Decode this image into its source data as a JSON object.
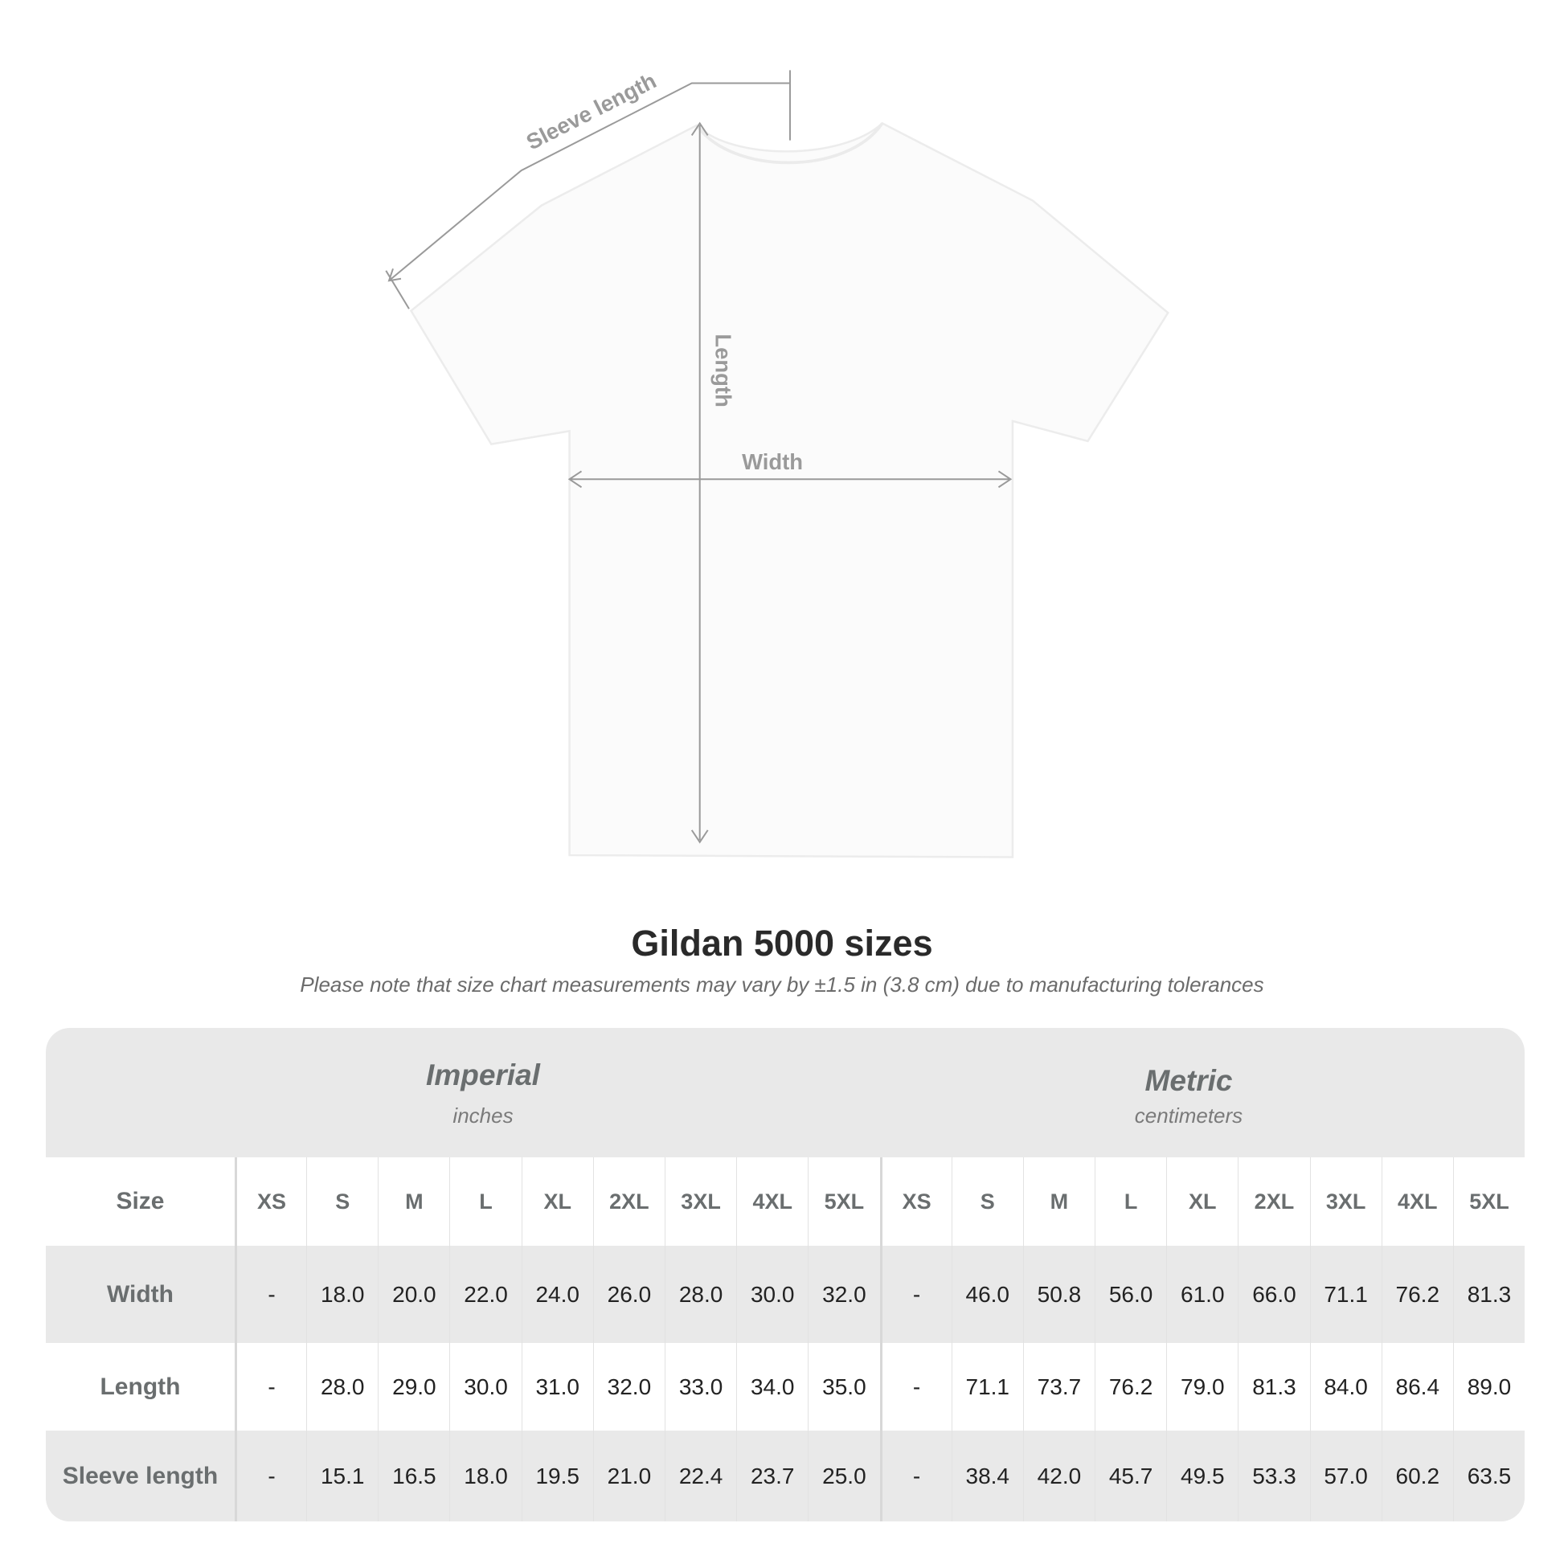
{
  "diagram": {
    "labels": {
      "sleeve": "Sleeve length",
      "length": "Length",
      "width": "Width"
    }
  },
  "title": "Gildan 5000 sizes",
  "note": "Please note that size chart measurements may vary by ±1.5 in (3.8 cm) due to manufacturing tolerances",
  "table": {
    "imperial": {
      "name": "Imperial",
      "unit": "inches"
    },
    "metric": {
      "name": "Metric",
      "unit": "centimeters"
    },
    "size_label": "Size",
    "sizes": [
      "XS",
      "S",
      "M",
      "L",
      "XL",
      "2XL",
      "3XL",
      "4XL",
      "5XL"
    ],
    "rows": [
      {
        "label": "Width",
        "imperial": [
          "-",
          "18.0",
          "20.0",
          "22.0",
          "24.0",
          "26.0",
          "28.0",
          "30.0",
          "32.0"
        ],
        "metric": [
          "-",
          "46.0",
          "50.8",
          "56.0",
          "61.0",
          "66.0",
          "71.1",
          "76.2",
          "81.3"
        ]
      },
      {
        "label": "Length",
        "imperial": [
          "-",
          "28.0",
          "29.0",
          "30.0",
          "31.0",
          "32.0",
          "33.0",
          "34.0",
          "35.0"
        ],
        "metric": [
          "-",
          "71.1",
          "73.7",
          "76.2",
          "79.0",
          "81.3",
          "84.0",
          "86.4",
          "89.0"
        ]
      },
      {
        "label": "Sleeve length",
        "imperial": [
          "-",
          "15.1",
          "16.5",
          "18.0",
          "19.5",
          "21.0",
          "22.4",
          "23.7",
          "25.0"
        ],
        "metric": [
          "-",
          "38.4",
          "42.0",
          "45.7",
          "49.5",
          "53.3",
          "57.0",
          "60.2",
          "63.5"
        ]
      }
    ]
  }
}
